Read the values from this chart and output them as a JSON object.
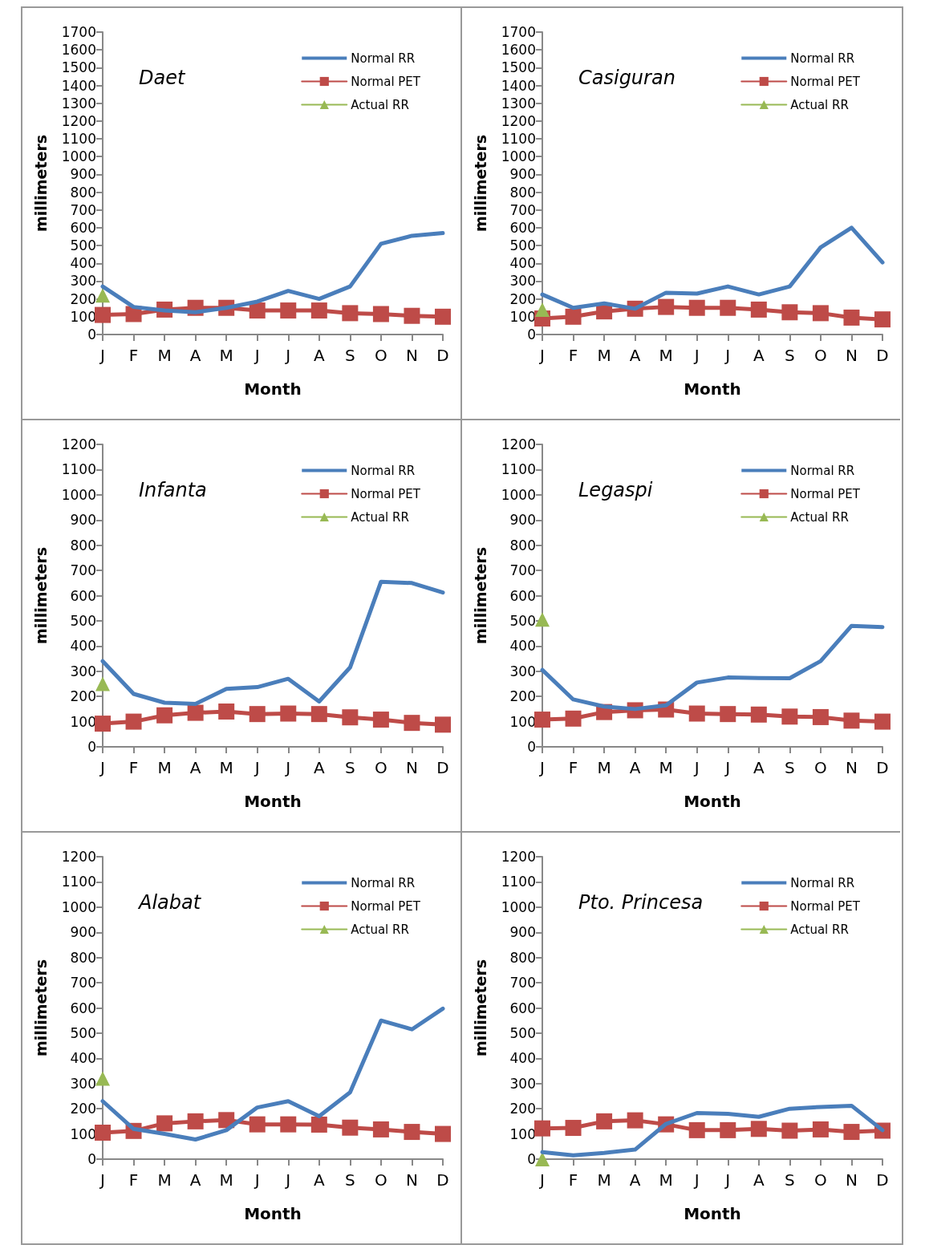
{
  "chart_data": [
    {
      "type": "line",
      "title": "Daet",
      "xlabel": "Month",
      "ylabel": "millimeters",
      "categories": [
        "J",
        "F",
        "M",
        "A",
        "M",
        "J",
        "J",
        "A",
        "S",
        "O",
        "N",
        "D"
      ],
      "ylim": [
        0,
        1700
      ],
      "yticks": [
        0,
        100,
        200,
        300,
        400,
        500,
        600,
        700,
        800,
        900,
        1000,
        1100,
        1200,
        1300,
        1400,
        1500,
        1600,
        1700
      ],
      "grid": false,
      "legend": "top right",
      "series": [
        {
          "name": "Normal RR",
          "color": "#4a7ebb",
          "marker": "none",
          "values": [
            270,
            155,
            135,
            125,
            150,
            185,
            245,
            200,
            270,
            510,
            555,
            570
          ]
        },
        {
          "name": "Normal PET",
          "color": "#be4b48",
          "marker": "square",
          "values": [
            110,
            115,
            140,
            150,
            150,
            135,
            135,
            135,
            120,
            115,
            105,
            100
          ]
        },
        {
          "name": "Actual RR",
          "color": "#98b954",
          "marker": "triangle",
          "values": [
            220,
            null,
            null,
            null,
            null,
            null,
            null,
            null,
            null,
            null,
            null,
            null
          ]
        }
      ]
    },
    {
      "type": "line",
      "title": "Casiguran",
      "xlabel": "Month",
      "ylabel": "millimeters",
      "categories": [
        "J",
        "F",
        "M",
        "A",
        "M",
        "J",
        "J",
        "A",
        "S",
        "O",
        "N",
        "D"
      ],
      "ylim": [
        0,
        1700
      ],
      "yticks": [
        0,
        100,
        200,
        300,
        400,
        500,
        600,
        700,
        800,
        900,
        1000,
        1100,
        1200,
        1300,
        1400,
        1500,
        1600,
        1700
      ],
      "grid": false,
      "legend": "top right",
      "series": [
        {
          "name": "Normal RR",
          "color": "#4a7ebb",
          "marker": "none",
          "values": [
            225,
            150,
            175,
            145,
            235,
            230,
            270,
            225,
            270,
            490,
            600,
            405
          ]
        },
        {
          "name": "Normal PET",
          "color": "#be4b48",
          "marker": "square",
          "values": [
            90,
            100,
            130,
            145,
            155,
            150,
            150,
            140,
            125,
            120,
            95,
            85
          ]
        },
        {
          "name": "Actual RR",
          "color": "#98b954",
          "marker": "triangle",
          "values": [
            140,
            null,
            null,
            null,
            null,
            null,
            null,
            null,
            null,
            null,
            null,
            null
          ]
        }
      ]
    },
    {
      "type": "line",
      "title": "Infanta",
      "xlabel": "Month",
      "ylabel": "millimeters",
      "categories": [
        "J",
        "F",
        "M",
        "A",
        "M",
        "J",
        "J",
        "A",
        "S",
        "O",
        "N",
        "D"
      ],
      "ylim": [
        0,
        1200
      ],
      "yticks": [
        0,
        100,
        200,
        300,
        400,
        500,
        600,
        700,
        800,
        900,
        1000,
        1100,
        1200
      ],
      "grid": false,
      "legend": "top right",
      "series": [
        {
          "name": "Normal RR",
          "color": "#4a7ebb",
          "marker": "none",
          "values": [
            340,
            210,
            175,
            170,
            230,
            237,
            270,
            180,
            315,
            655,
            650,
            612
          ]
        },
        {
          "name": "Normal PET",
          "color": "#be4b48",
          "marker": "square",
          "values": [
            92,
            100,
            125,
            135,
            140,
            130,
            132,
            130,
            117,
            108,
            95,
            88
          ]
        },
        {
          "name": "Actual RR",
          "color": "#98b954",
          "marker": "triangle",
          "values": [
            250,
            null,
            null,
            null,
            null,
            null,
            null,
            null,
            null,
            null,
            null,
            null
          ]
        }
      ]
    },
    {
      "type": "line",
      "title": "Legaspi",
      "xlabel": "Month",
      "ylabel": "millimeters",
      "categories": [
        "J",
        "F",
        "M",
        "A",
        "M",
        "J",
        "J",
        "A",
        "S",
        "O",
        "N",
        "D"
      ],
      "ylim": [
        0,
        1200
      ],
      "yticks": [
        0,
        100,
        200,
        300,
        400,
        500,
        600,
        700,
        800,
        900,
        1000,
        1100,
        1200
      ],
      "grid": false,
      "legend": "top right",
      "series": [
        {
          "name": "Normal RR",
          "color": "#4a7ebb",
          "marker": "none",
          "values": [
            305,
            188,
            160,
            150,
            165,
            255,
            275,
            273,
            272,
            340,
            480,
            475
          ]
        },
        {
          "name": "Normal PET",
          "color": "#be4b48",
          "marker": "square",
          "values": [
            108,
            112,
            138,
            145,
            148,
            132,
            130,
            128,
            120,
            118,
            104,
            100
          ]
        },
        {
          "name": "Actual RR",
          "color": "#98b954",
          "marker": "triangle",
          "values": [
            505,
            null,
            null,
            null,
            null,
            null,
            null,
            null,
            null,
            null,
            null,
            null
          ]
        }
      ]
    },
    {
      "type": "line",
      "title": "Alabat",
      "xlabel": "Month",
      "ylabel": "millimeters",
      "categories": [
        "J",
        "F",
        "M",
        "A",
        "M",
        "J",
        "J",
        "A",
        "S",
        "O",
        "N",
        "D"
      ],
      "ylim": [
        0,
        1200
      ],
      "yticks": [
        0,
        100,
        200,
        300,
        400,
        500,
        600,
        700,
        800,
        900,
        1000,
        1100,
        1200
      ],
      "grid": false,
      "legend": "top right",
      "series": [
        {
          "name": "Normal RR",
          "color": "#4a7ebb",
          "marker": "none",
          "values": [
            230,
            120,
            100,
            78,
            115,
            205,
            230,
            170,
            265,
            550,
            515,
            597
          ]
        },
        {
          "name": "Normal PET",
          "color": "#be4b48",
          "marker": "square",
          "values": [
            105,
            112,
            142,
            150,
            155,
            138,
            138,
            137,
            125,
            118,
            108,
            100
          ]
        },
        {
          "name": "Actual RR",
          "color": "#98b954",
          "marker": "triangle",
          "values": [
            320,
            null,
            null,
            null,
            null,
            null,
            null,
            null,
            null,
            null,
            null,
            null
          ]
        }
      ]
    },
    {
      "type": "line",
      "title": "Pto. Princesa",
      "xlabel": "Month",
      "ylabel": "millimeters",
      "categories": [
        "J",
        "F",
        "M",
        "A",
        "M",
        "J",
        "J",
        "A",
        "S",
        "O",
        "N",
        "D"
      ],
      "ylim": [
        0,
        1200
      ],
      "yticks": [
        0,
        100,
        200,
        300,
        400,
        500,
        600,
        700,
        800,
        900,
        1000,
        1100,
        1200
      ],
      "grid": false,
      "legend": "top right",
      "series": [
        {
          "name": "Normal RR",
          "color": "#4a7ebb",
          "marker": "none",
          "values": [
            28,
            15,
            25,
            38,
            140,
            183,
            180,
            168,
            200,
            207,
            212,
            115
          ]
        },
        {
          "name": "Normal PET",
          "color": "#be4b48",
          "marker": "square",
          "values": [
            122,
            124,
            150,
            154,
            138,
            115,
            115,
            120,
            113,
            118,
            108,
            113
          ]
        },
        {
          "name": "Actual RR",
          "color": "#98b954",
          "marker": "triangle",
          "values": [
            0,
            null,
            null,
            null,
            null,
            null,
            null,
            null,
            null,
            null,
            null,
            null
          ]
        }
      ]
    }
  ]
}
